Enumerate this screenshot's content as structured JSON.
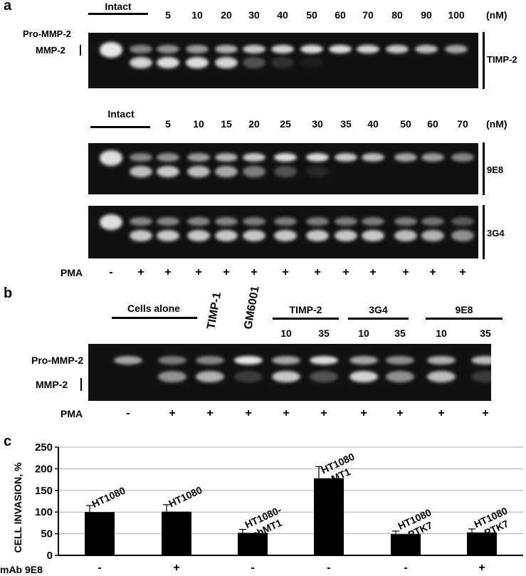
{
  "panel_a": {
    "label": "a",
    "unit": "(nM)",
    "intact": "Intact",
    "pro_label": "Pro-MMP-2",
    "mmp_label": "MMP-2",
    "gel1": {
      "name": "TIMP-2",
      "concs": [
        "5",
        "10",
        "20",
        "30",
        "40",
        "50",
        "60",
        "70",
        "80",
        "90",
        "100"
      ],
      "bands": [
        [
          1,
          0.25
        ],
        [
          0.55,
          0.9
        ],
        [
          0.6,
          0.95
        ],
        [
          0.65,
          0.95
        ],
        [
          0.75,
          0.9
        ],
        [
          0.85,
          0.3
        ],
        [
          0.9,
          0.15
        ],
        [
          0.95,
          0.05
        ],
        [
          0.95,
          0
        ],
        [
          0.9,
          0
        ],
        [
          0.85,
          0
        ],
        [
          0.8,
          0
        ],
        [
          0.7,
          0
        ]
      ]
    },
    "concs2": [
      "5",
      "10",
      "15",
      "20",
      "25",
      "30",
      "35",
      "40",
      "50",
      "60",
      "70"
    ],
    "gel2": {
      "name": "9E8",
      "bands": [
        [
          0.95,
          0
        ],
        [
          0.55,
          0.8
        ],
        [
          0.6,
          0.85
        ],
        [
          0.65,
          0.8
        ],
        [
          0.75,
          0.7
        ],
        [
          0.85,
          0.5
        ],
        [
          0.95,
          0.3
        ],
        [
          0.95,
          0.1
        ],
        [
          0.85,
          0
        ],
        [
          0.8,
          0
        ],
        [
          0.7,
          0
        ],
        [
          0.65,
          0
        ],
        [
          0.55,
          0
        ]
      ]
    },
    "gel3": {
      "name": "3G4",
      "bands": [
        [
          0.95,
          0
        ],
        [
          0.55,
          0.85
        ],
        [
          0.55,
          0.85
        ],
        [
          0.55,
          0.85
        ],
        [
          0.55,
          0.85
        ],
        [
          0.5,
          0.85
        ],
        [
          0.5,
          0.85
        ],
        [
          0.5,
          0.85
        ],
        [
          0.5,
          0.85
        ],
        [
          0.5,
          0.85
        ],
        [
          0.5,
          0.8
        ],
        [
          0.45,
          0.75
        ],
        [
          0.35,
          0.6
        ]
      ]
    },
    "pma_label": "PMA",
    "pma": [
      "-",
      "+",
      "+",
      "+",
      "+",
      "+",
      "+",
      "+",
      "+",
      "+",
      "+",
      "+",
      "+"
    ]
  },
  "panel_b": {
    "label": "b",
    "cells_alone": "Cells alone",
    "timp1": "TIMP-1",
    "gm6001": "GM6001",
    "groups": [
      {
        "name": "TIMP-2",
        "concs": [
          "10",
          "35"
        ]
      },
      {
        "name": "3G4",
        "concs": [
          "10",
          "35"
        ]
      },
      {
        "name": "9E8",
        "concs": [
          "10",
          "35"
        ]
      }
    ],
    "pro_label": "Pro-MMP-2",
    "mmp_label": "MMP-2",
    "bands": [
      [
        0.7,
        0
      ],
      [
        0.5,
        0.6
      ],
      [
        0.55,
        0.75
      ],
      [
        1,
        0.2
      ],
      [
        0.7,
        0.85
      ],
      [
        0.95,
        0.3
      ],
      [
        0.7,
        0.9
      ],
      [
        0.6,
        0.6
      ],
      [
        0.75,
        0.8
      ],
      [
        0.8,
        0.2
      ]
    ],
    "pma_label": "PMA",
    "pma": [
      "-",
      "+",
      "+",
      "+",
      "+",
      "+",
      "+",
      "+",
      "+",
      "+"
    ]
  },
  "panel_c": {
    "label": "c",
    "xrow_label": "mAb 9E8"
  },
  "chart_data": {
    "type": "bar",
    "ylabel": "CELL INVASION, %",
    "ylim": [
      0,
      250
    ],
    "yticks": [
      "0",
      "50",
      "100",
      "150",
      "200",
      "250"
    ],
    "grid": true,
    "categories": [
      "HT1080",
      "HT1080",
      "HT1080-shMT1",
      "HT1080-MT1",
      "HT1080-PTK7",
      "HT1080-PTK7"
    ],
    "bar_labels": [
      [
        "HT1080"
      ],
      [
        "HT1080"
      ],
      [
        "HT1080-",
        "shMT1"
      ],
      [
        "HT1080",
        "-MT1"
      ],
      [
        "HT1080",
        "-PTK7"
      ],
      [
        "HT1080",
        "-PTK7"
      ]
    ],
    "mab_9e8": [
      "-",
      "+",
      "-",
      "-",
      "-",
      "+"
    ],
    "values": [
      100,
      101,
      52,
      178,
      49,
      53
    ],
    "errors": [
      15,
      16,
      8,
      27,
      7,
      8
    ],
    "bar_color": "#000000"
  }
}
